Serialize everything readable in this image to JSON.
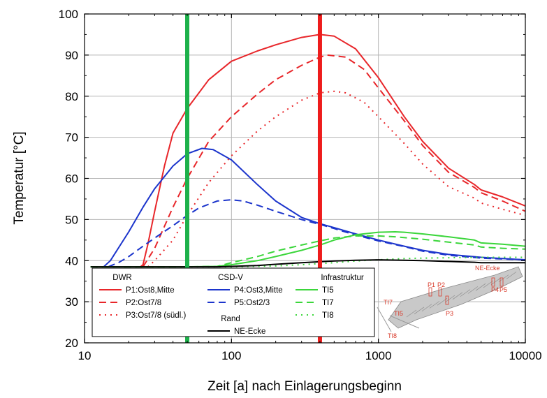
{
  "chart_data": {
    "type": "line",
    "xlabel": "Zeit [a] nach Einlagerungsbeginn",
    "ylabel": "Temperatur [°C]",
    "x_scale": "log",
    "xlim": [
      10,
      10000
    ],
    "ylim": [
      20,
      100
    ],
    "grid": true,
    "x_ticks": [
      10,
      100,
      1000,
      10000
    ],
    "x_tick_labels": [
      "10",
      "100",
      "1000",
      "10000"
    ],
    "y_ticks": [
      20,
      30,
      40,
      50,
      60,
      70,
      80,
      90,
      100
    ],
    "y_tick_labels": [
      "20",
      "30",
      "40",
      "50",
      "60",
      "70",
      "80",
      "90",
      "100"
    ],
    "vertical_lines": [
      {
        "x": 50,
        "color": "#1db14b"
      },
      {
        "x": 400,
        "color": "#ee1c1c"
      }
    ],
    "legend": {
      "placement": "bottom-left",
      "groups": [
        {
          "title": "DWR",
          "entries": [
            "P1:Ost8,Mitte",
            "P2:Ost7/8",
            "P3:Ost7/8 (südl.)"
          ]
        },
        {
          "title": "CSD-V",
          "entries": [
            "P4:Ost3,Mitte",
            "P5:Ost2/3"
          ]
        },
        {
          "title": "Rand",
          "entries": [
            "NE-Ecke"
          ]
        },
        {
          "title": "Infrastruktur",
          "entries": [
            "TI5",
            "TI7",
            "TI8"
          ]
        }
      ]
    },
    "inset_map": {
      "labels": [
        "NE-Ecke",
        "P1",
        "P2",
        "P3",
        "P4",
        "P5",
        "TI7",
        "TI5",
        "TI8"
      ]
    },
    "series": [
      {
        "name": "P1:Ost8,Mitte",
        "color": "#e8262a",
        "dash": "solid",
        "x": [
          24,
          25,
          27,
          30,
          35,
          40,
          50,
          70,
          100,
          150,
          200,
          300,
          400,
          500,
          700,
          1000,
          1500,
          2000,
          3000,
          4500,
          5000,
          7000,
          10000
        ],
        "y": [
          38.5,
          39,
          44,
          52,
          63,
          71,
          77,
          84,
          88.5,
          91,
          92.5,
          94.3,
          95,
          94.6,
          91.5,
          84.5,
          75,
          69,
          62.5,
          58.5,
          57.2,
          55.5,
          53.3
        ]
      },
      {
        "name": "P2:Ost7/8",
        "color": "#e8262a",
        "dash": "dashed",
        "x": [
          25,
          30,
          40,
          50,
          70,
          100,
          150,
          200,
          300,
          400,
          450,
          600,
          800,
          1000,
          1500,
          2000,
          3000,
          4500,
          5000,
          7000,
          10000
        ],
        "y": [
          38.5,
          43,
          53,
          60,
          69,
          75,
          80.5,
          84,
          87.5,
          89.5,
          90,
          89.5,
          86.5,
          82,
          74,
          68,
          61.5,
          57.8,
          56.5,
          54.5,
          52
        ]
      },
      {
        "name": "P3:Ost7/8 (südl.)",
        "color": "#e8262a",
        "dash": "dotted",
        "x": [
          27,
          30,
          40,
          50,
          70,
          100,
          150,
          200,
          300,
          400,
          500,
          600,
          800,
          1000,
          1500,
          2000,
          3000,
          4500,
          5000,
          7000,
          10000
        ],
        "y": [
          38.5,
          40,
          45,
          51,
          59,
          65.5,
          71.5,
          75,
          79,
          80.8,
          81.2,
          80.8,
          78.5,
          75,
          68.5,
          63.5,
          58,
          55.2,
          54,
          52.5,
          51
        ]
      },
      {
        "name": "P4:Ost3,Mitte",
        "color": "#1c35cc",
        "dash": "solid",
        "x": [
          13.5,
          15,
          20,
          25,
          30,
          40,
          50,
          63,
          75,
          100,
          150,
          200,
          300,
          400,
          500,
          700,
          1000,
          1500,
          2000,
          3000,
          5000,
          10000
        ],
        "y": [
          38.5,
          40,
          47,
          53,
          57.5,
          63,
          66,
          67.3,
          67,
          64.5,
          58.5,
          54.5,
          50.5,
          49,
          48,
          46.5,
          45,
          43.5,
          42.5,
          41.5,
          40.8,
          40.2
        ]
      },
      {
        "name": "P5:Ost2/3",
        "color": "#1c35cc",
        "dash": "dashed",
        "x": [
          14.5,
          17,
          20,
          25,
          30,
          40,
          50,
          60,
          80,
          100,
          120,
          150,
          200,
          300,
          400,
          500,
          700,
          1000,
          1500,
          2000,
          3000,
          5000,
          10000
        ],
        "y": [
          38.5,
          39.5,
          41,
          43.5,
          45.5,
          48.5,
          51,
          52.8,
          54.5,
          54.8,
          54.5,
          53.5,
          52,
          50,
          48.8,
          47.8,
          46.2,
          44.8,
          43.4,
          42.3,
          41.3,
          40.6,
          40.2
        ]
      },
      {
        "name": "TI5",
        "color": "#3bd63b",
        "dash": "solid",
        "x": [
          11,
          50,
          80,
          100,
          150,
          200,
          300,
          400,
          500,
          700,
          1000,
          1300,
          1500,
          2000,
          3000,
          4500,
          5000,
          7000,
          10000
        ],
        "y": [
          38.5,
          38.5,
          38.6,
          39,
          40,
          41,
          42.5,
          43.8,
          45,
          46.3,
          46.9,
          47,
          46.9,
          46.5,
          45.8,
          45,
          44.3,
          44,
          43.5
        ]
      },
      {
        "name": "TI7",
        "color": "#3bd63b",
        "dash": "dashed",
        "x": [
          11,
          50,
          80,
          100,
          150,
          200,
          300,
          400,
          500,
          700,
          1000,
          1300,
          2000,
          3000,
          4500,
          5000,
          7000,
          10000
        ],
        "y": [
          38.5,
          38.5,
          38.6,
          39.5,
          41,
          42.3,
          43.8,
          44.8,
          45.5,
          46,
          46,
          45.8,
          45.2,
          44.5,
          43.8,
          43.3,
          43,
          42.8
        ]
      },
      {
        "name": "TI8",
        "color": "#3bd63b",
        "dash": "dotted",
        "x": [
          11,
          100,
          200,
          300,
          500,
          700,
          1000,
          1500,
          2000,
          3000,
          5000,
          10000
        ],
        "y": [
          38.5,
          38.5,
          38.7,
          39,
          39.5,
          39.9,
          40.2,
          40.5,
          40.6,
          40.7,
          40.8,
          40.8
        ]
      },
      {
        "name": "NE-Ecke",
        "color": "#000000",
        "dash": "solid",
        "x": [
          11,
          80,
          100,
          150,
          200,
          300,
          500,
          700,
          1000,
          1500,
          2000,
          3000,
          4500,
          5000,
          7000,
          10000
        ],
        "y": [
          38.5,
          38.5,
          38.6,
          38.8,
          39.1,
          39.5,
          39.9,
          40.1,
          40.2,
          40.1,
          40,
          39.8,
          39.6,
          39.5,
          39.5,
          39.5
        ]
      }
    ]
  }
}
